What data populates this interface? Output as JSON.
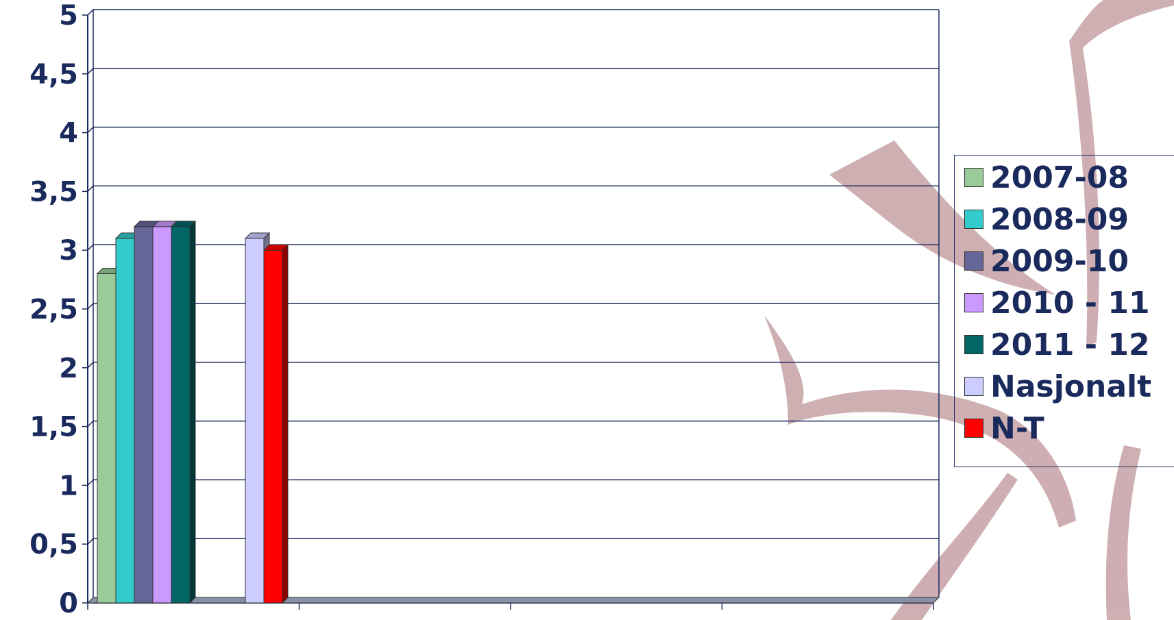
{
  "chart_data": {
    "type": "bar",
    "categories": [
      "",
      "",
      "",
      ""
    ],
    "series": [
      {
        "name": "2007-08",
        "values": [
          2.8,
          0,
          0,
          0
        ],
        "color": "#99cc99"
      },
      {
        "name": "2008-09",
        "values": [
          3.1,
          0,
          0,
          0
        ],
        "color": "#33cccc"
      },
      {
        "name": "2009-10",
        "values": [
          3.2,
          0,
          0,
          0
        ],
        "color": "#666699"
      },
      {
        "name": "2010 - 11",
        "values": [
          3.2,
          0,
          0,
          0
        ],
        "color": "#cc99ff"
      },
      {
        "name": "2011 - 12",
        "values": [
          3.2,
          0,
          0,
          0
        ],
        "color": "#006666"
      },
      {
        "name": "Nasjonalt",
        "values": [
          3.1,
          0,
          0,
          0
        ],
        "color": "#ccccff"
      },
      {
        "name": "N-T",
        "values": [
          3.0,
          0,
          0,
          0
        ],
        "color": "#ff0000"
      }
    ],
    "ylim": [
      0,
      5
    ],
    "yticks": [
      "0",
      "0,5",
      "1",
      "1,5",
      "2",
      "2,5",
      "3",
      "3,5",
      "4",
      "4,5",
      "5"
    ],
    "title": "",
    "xlabel": "",
    "ylabel": "",
    "grid": true,
    "legend_position": "right"
  },
  "colors": {
    "axis": "#1a2a5c",
    "gridline": "#1a2a5c",
    "floor": "#8a90a8",
    "watermark": "#c9a6aa"
  }
}
